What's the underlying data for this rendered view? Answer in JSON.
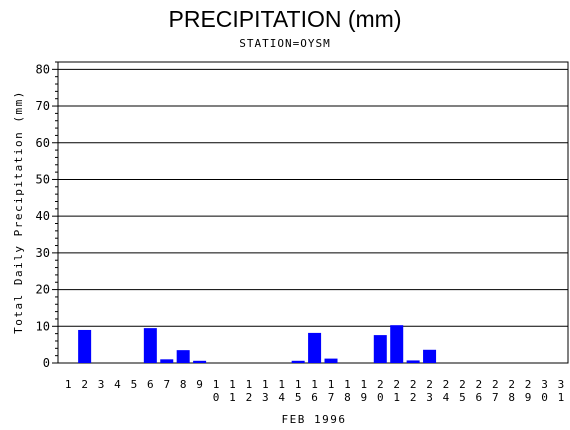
{
  "chart_data": {
    "type": "bar",
    "title": "PRECIPITATION (mm)",
    "subtitle": "STATION=OYSM",
    "xlabel": "FEB 1996",
    "ylabel": "Total Daily Precipitation (mm)",
    "ylim": [
      0,
      82
    ],
    "yticks": [
      0,
      10,
      20,
      30,
      40,
      50,
      60,
      70,
      80
    ],
    "grid": true,
    "bar_color": "#0000ff",
    "categories": [
      "1",
      "2",
      "3",
      "4",
      "5",
      "6",
      "7",
      "8",
      "9",
      "10",
      "11",
      "12",
      "13",
      "14",
      "15",
      "16",
      "17",
      "18",
      "19",
      "20",
      "21",
      "22",
      "23",
      "24",
      "25",
      "26",
      "27",
      "28",
      "29",
      "30",
      "31"
    ],
    "values": [
      0,
      9,
      0,
      0,
      0,
      9.5,
      1,
      3.5,
      0.6,
      0,
      0,
      0,
      0,
      0,
      0.6,
      8.2,
      1.2,
      0,
      0,
      7.6,
      10.3,
      0.7,
      3.6,
      0,
      0,
      0,
      0,
      0,
      0,
      0,
      0
    ]
  }
}
